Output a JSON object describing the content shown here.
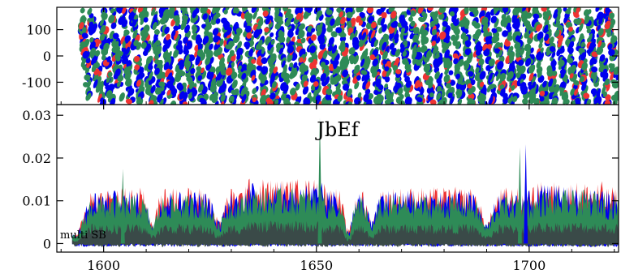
{
  "chart_data": [
    {
      "type": "scatter",
      "panel": "top",
      "title": "",
      "xlabel": "",
      "ylabel": "",
      "xlim": [
        1589,
        1721
      ],
      "ylim": [
        -185,
        185
      ],
      "x_data_start": 1594.6,
      "y_ticks": [
        100,
        0,
        -100
      ],
      "y_tick_labels": [
        "100",
        "0",
        "-100"
      ],
      "grid": false,
      "series": [
        {
          "color": "#0000ee"
        },
        {
          "color": "#ee3333"
        },
        {
          "color": "#2e8b57"
        }
      ]
    },
    {
      "type": "area",
      "panel": "bottom",
      "title": "JbEf",
      "annotation": "multi SB",
      "xlabel": "",
      "ylabel": "",
      "xlim": [
        1589,
        1721
      ],
      "ylim": [
        -0.002,
        0.0325
      ],
      "x_ticks": [
        1600,
        1650,
        1700
      ],
      "x_tick_labels": [
        "1600",
        "1650",
        "1700"
      ],
      "y_ticks": [
        0,
        0.01,
        0.02,
        0.03
      ],
      "y_tick_labels": [
        "0",
        "0.01",
        "0.02",
        "0.03"
      ],
      "grid": false,
      "series": [
        {
          "color": "#ee3333"
        },
        {
          "color": "#0000ee"
        },
        {
          "color": "#2e8b57"
        },
        {
          "color": "#3a4a48"
        }
      ],
      "spikes": [
        {
          "x": 1604.5,
          "y": 0.0175
        },
        {
          "x": 1650.8,
          "y": 0.0295
        },
        {
          "x": 1697.8,
          "y": 0.0225
        },
        {
          "x": 1699.2,
          "y": 0.0232
        }
      ]
    }
  ]
}
